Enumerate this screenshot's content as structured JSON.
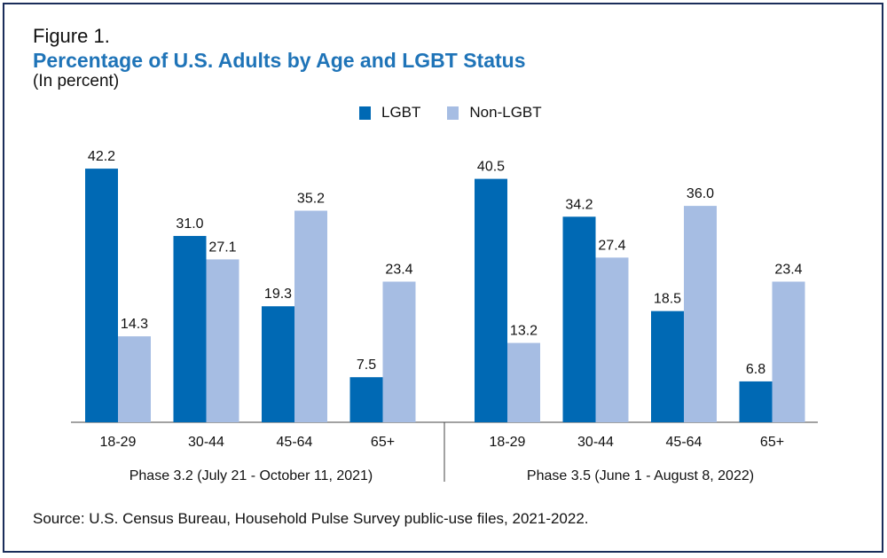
{
  "figure_label": "Figure 1.",
  "source": "Source: U.S. Census Bureau, Household Pulse Survey public-use files, 2021-2022.",
  "colors": {
    "lgbt": "#0069b4",
    "non_lgbt": "#a6bde3",
    "title": "#1f74b8",
    "frame": "#1a2d5a"
  },
  "chart_data": {
    "type": "bar",
    "title": "Percentage of U.S. Adults by Age and LGBT Status",
    "subtitle": "(In percent)",
    "legend": [
      "LGBT",
      "Non-LGBT"
    ],
    "legend_position": "top-center",
    "ylim": [
      0,
      45
    ],
    "grid": false,
    "groups": [
      {
        "label": "Phase 3.2 (July 21 - October 11, 2021)",
        "categories": [
          "18-29",
          "30-44",
          "45-64",
          "65+"
        ],
        "series": [
          {
            "name": "LGBT",
            "values": [
              42.2,
              31.0,
              19.3,
              7.5
            ]
          },
          {
            "name": "Non-LGBT",
            "values": [
              14.3,
              27.1,
              35.2,
              23.4
            ]
          }
        ]
      },
      {
        "label": "Phase 3.5 (June 1 - August 8, 2022)",
        "categories": [
          "18-29",
          "30-44",
          "45-64",
          "65+"
        ],
        "series": [
          {
            "name": "LGBT",
            "values": [
              40.5,
              34.2,
              18.5,
              6.8
            ]
          },
          {
            "name": "Non-LGBT",
            "values": [
              13.2,
              27.4,
              36.0,
              23.4
            ]
          }
        ]
      }
    ]
  }
}
